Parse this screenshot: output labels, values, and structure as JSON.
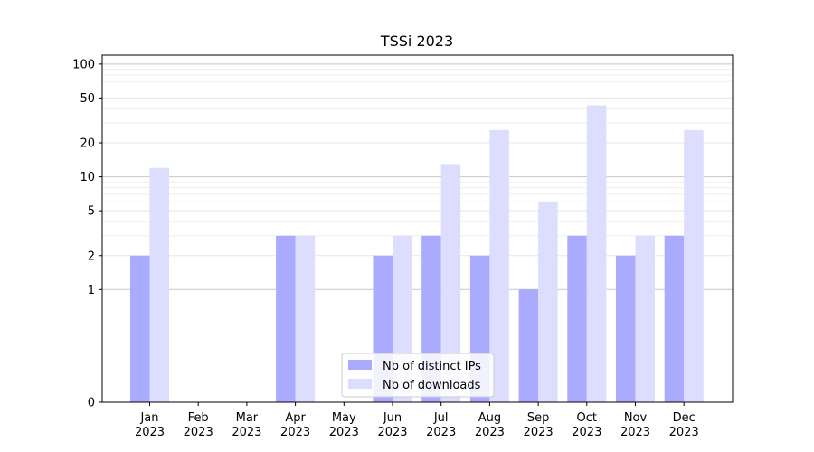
{
  "chart_data": {
    "type": "bar",
    "title": "TSSi 2023",
    "xlabel": "",
    "ylabel": "",
    "categories": [
      [
        "Jan",
        "2023"
      ],
      [
        "Feb",
        "2023"
      ],
      [
        "Mar",
        "2023"
      ],
      [
        "Apr",
        "2023"
      ],
      [
        "May",
        "2023"
      ],
      [
        "Jun",
        "2023"
      ],
      [
        "Jul",
        "2023"
      ],
      [
        "Aug",
        "2023"
      ],
      [
        "Sep",
        "2023"
      ],
      [
        "Oct",
        "2023"
      ],
      [
        "Nov",
        "2023"
      ],
      [
        "Dec",
        "2023"
      ]
    ],
    "series": [
      {
        "name": "Nb of distinct IPs",
        "color": "#aaaaff",
        "values": [
          2,
          0,
          0,
          3,
          0,
          2,
          3,
          2,
          1,
          3,
          2,
          3
        ]
      },
      {
        "name": "Nb of downloads",
        "color": "#ddddff",
        "values": [
          12,
          0,
          0,
          3,
          0,
          3,
          13,
          26,
          6,
          43,
          3,
          26
        ]
      }
    ],
    "y_scale": "symlog",
    "y_ticks": [
      0,
      1,
      2,
      5,
      10,
      20,
      50,
      100
    ],
    "ylim": [
      0,
      120
    ],
    "grid": true,
    "legend_position": "bottom-center"
  }
}
